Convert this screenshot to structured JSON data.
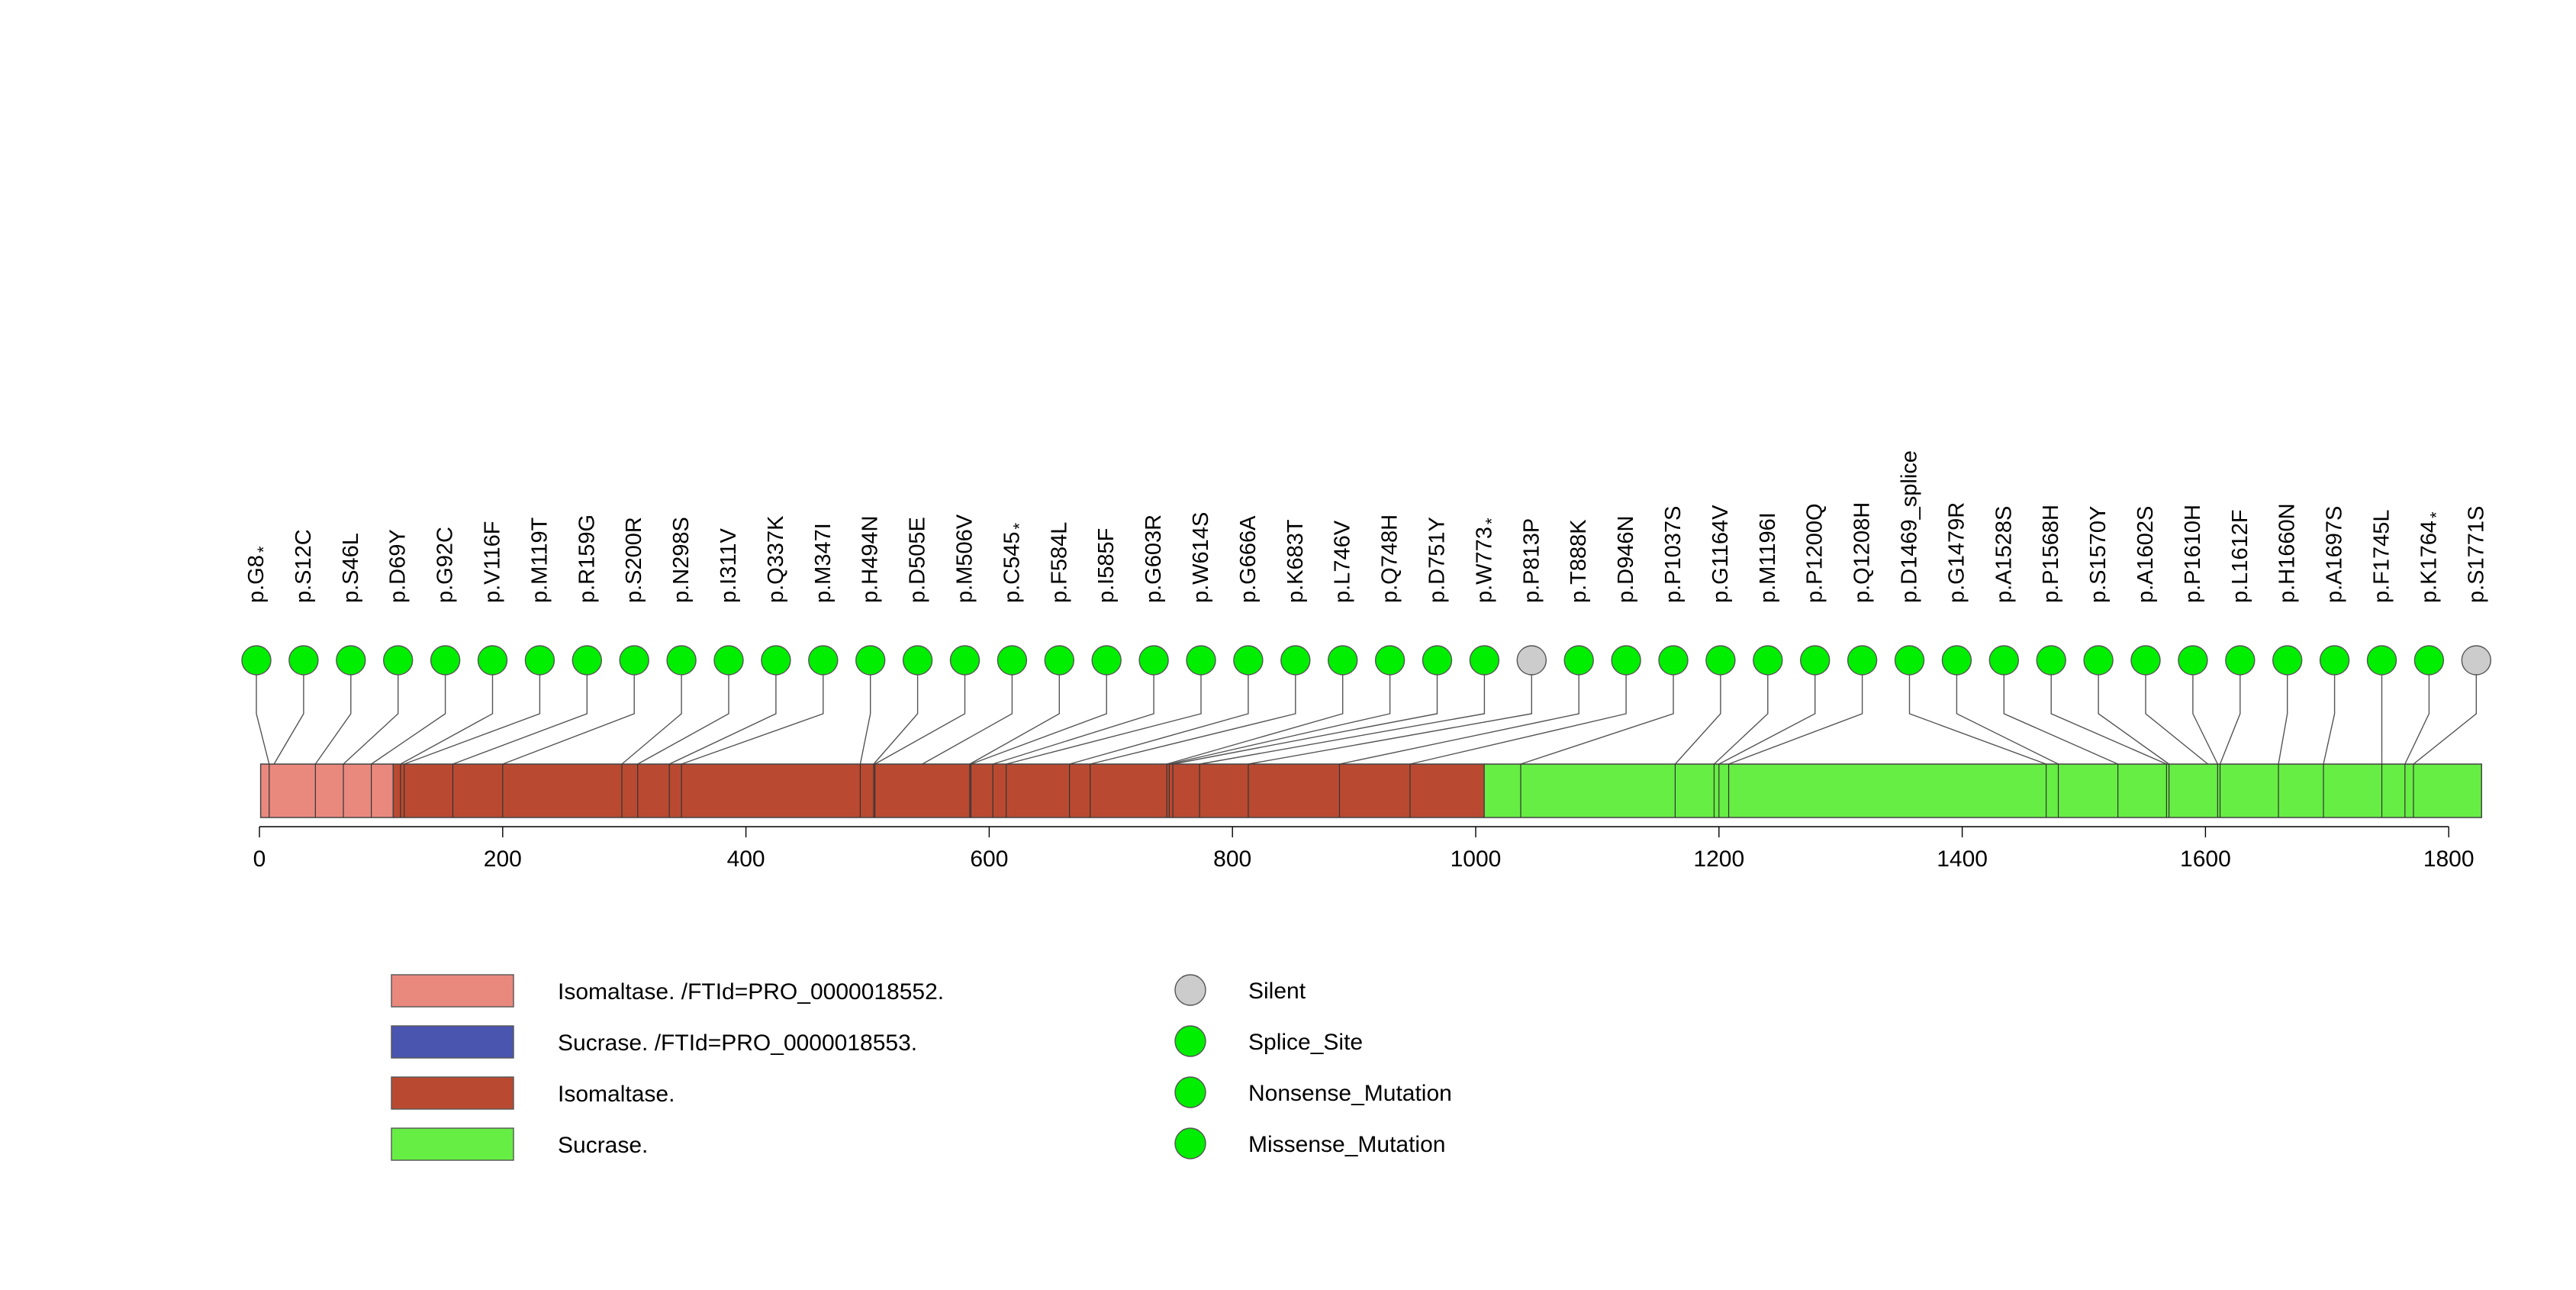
{
  "chart_data": {
    "type": "lollipop",
    "protein_length": 1827,
    "x_axis": {
      "ticks": [
        0,
        200,
        400,
        600,
        800,
        1000,
        1200,
        1400,
        1600,
        1800
      ],
      "range": [
        0,
        1827
      ]
    },
    "domains": [
      {
        "name": "Isomaltase. /FTId=PRO_0000018552.",
        "start": 1,
        "end": 110,
        "color": "#e9897e"
      },
      {
        "name": "Sucrase. /FTId=PRO_0000018553.",
        "start": 0,
        "end": 0,
        "color": "#4a55b0"
      },
      {
        "name": "Isomaltase.",
        "start": 110,
        "end": 1007,
        "color": "#b94a31"
      },
      {
        "name": "Sucrase.",
        "start": 1007,
        "end": 1827,
        "color": "#66ee44"
      }
    ],
    "domain_boundaries": [
      8,
      46,
      69,
      92,
      116,
      119,
      159,
      200,
      298,
      311,
      337,
      347,
      494,
      505,
      506,
      584,
      585,
      603,
      614,
      666,
      683,
      746,
      748,
      751,
      773,
      813,
      888,
      946,
      1037,
      1164,
      1196,
      1200,
      1208,
      1469,
      1479,
      1528,
      1568,
      1570,
      1610,
      1612,
      1660,
      1697,
      1745,
      1764,
      1771
    ],
    "mutations": [
      {
        "label": "p.G8",
        "position": 8,
        "type": "Nonsense_Mutation",
        "star": true
      },
      {
        "label": "p.S12C",
        "position": 12,
        "type": "Missense_Mutation",
        "star": false
      },
      {
        "label": "p.S46L",
        "position": 46,
        "type": "Missense_Mutation",
        "star": false
      },
      {
        "label": "p.D69Y",
        "position": 69,
        "type": "Missense_Mutation",
        "star": false
      },
      {
        "label": "p.G92C",
        "position": 92,
        "type": "Missense_Mutation",
        "star": false
      },
      {
        "label": "p.V116F",
        "position": 116,
        "type": "Missense_Mutation",
        "star": false
      },
      {
        "label": "p.M119T",
        "position": 119,
        "type": "Missense_Mutation",
        "star": false
      },
      {
        "label": "p.R159G",
        "position": 159,
        "type": "Missense_Mutation",
        "star": false
      },
      {
        "label": "p.S200R",
        "position": 200,
        "type": "Missense_Mutation",
        "star": false
      },
      {
        "label": "p.N298S",
        "position": 298,
        "type": "Missense_Mutation",
        "star": false
      },
      {
        "label": "p.I311V",
        "position": 311,
        "type": "Missense_Mutation",
        "star": false
      },
      {
        "label": "p.Q337K",
        "position": 337,
        "type": "Missense_Mutation",
        "star": false
      },
      {
        "label": "p.M347I",
        "position": 347,
        "type": "Missense_Mutation",
        "star": false
      },
      {
        "label": "p.H494N",
        "position": 494,
        "type": "Missense_Mutation",
        "star": false
      },
      {
        "label": "p.D505E",
        "position": 505,
        "type": "Missense_Mutation",
        "star": false
      },
      {
        "label": "p.M506V",
        "position": 506,
        "type": "Missense_Mutation",
        "star": false
      },
      {
        "label": "p.C545",
        "position": 545,
        "type": "Nonsense_Mutation",
        "star": true
      },
      {
        "label": "p.F584L",
        "position": 584,
        "type": "Missense_Mutation",
        "star": false
      },
      {
        "label": "p.I585F",
        "position": 585,
        "type": "Missense_Mutation",
        "star": false
      },
      {
        "label": "p.G603R",
        "position": 603,
        "type": "Missense_Mutation",
        "star": false
      },
      {
        "label": "p.W614S",
        "position": 614,
        "type": "Missense_Mutation",
        "star": false
      },
      {
        "label": "p.G666A",
        "position": 666,
        "type": "Missense_Mutation",
        "star": false
      },
      {
        "label": "p.K683T",
        "position": 683,
        "type": "Missense_Mutation",
        "star": false
      },
      {
        "label": "p.L746V",
        "position": 746,
        "type": "Missense_Mutation",
        "star": false
      },
      {
        "label": "p.Q748H",
        "position": 748,
        "type": "Missense_Mutation",
        "star": false
      },
      {
        "label": "p.D751Y",
        "position": 751,
        "type": "Missense_Mutation",
        "star": false
      },
      {
        "label": "p.W773",
        "position": 773,
        "type": "Nonsense_Mutation",
        "star": true
      },
      {
        "label": "p.P813P",
        "position": 813,
        "type": "Silent",
        "star": false
      },
      {
        "label": "p.T888K",
        "position": 888,
        "type": "Missense_Mutation",
        "star": false
      },
      {
        "label": "p.D946N",
        "position": 946,
        "type": "Missense_Mutation",
        "star": false
      },
      {
        "label": "p.P1037S",
        "position": 1037,
        "type": "Missense_Mutation",
        "star": false
      },
      {
        "label": "p.G1164V",
        "position": 1164,
        "type": "Missense_Mutation",
        "star": false
      },
      {
        "label": "p.M1196I",
        "position": 1196,
        "type": "Missense_Mutation",
        "star": false
      },
      {
        "label": "p.P1200Q",
        "position": 1200,
        "type": "Missense_Mutation",
        "star": false
      },
      {
        "label": "p.Q1208H",
        "position": 1208,
        "type": "Missense_Mutation",
        "star": false
      },
      {
        "label": "p.D1469_splice",
        "position": 1469,
        "type": "Splice_Site",
        "star": false
      },
      {
        "label": "p.G1479R",
        "position": 1479,
        "type": "Missense_Mutation",
        "star": false
      },
      {
        "label": "p.A1528S",
        "position": 1528,
        "type": "Missense_Mutation",
        "star": false
      },
      {
        "label": "p.P1568H",
        "position": 1568,
        "type": "Missense_Mutation",
        "star": false
      },
      {
        "label": "p.S1570Y",
        "position": 1570,
        "type": "Missense_Mutation",
        "star": false
      },
      {
        "label": "p.A1602S",
        "position": 1602,
        "type": "Missense_Mutation",
        "star": false
      },
      {
        "label": "p.P1610H",
        "position": 1610,
        "type": "Missense_Mutation",
        "star": false
      },
      {
        "label": "p.L1612F",
        "position": 1612,
        "type": "Missense_Mutation",
        "star": false
      },
      {
        "label": "p.H1660N",
        "position": 1660,
        "type": "Missense_Mutation",
        "star": false
      },
      {
        "label": "p.A1697S",
        "position": 1697,
        "type": "Missense_Mutation",
        "star": false
      },
      {
        "label": "p.F1745L",
        "position": 1745,
        "type": "Missense_Mutation",
        "star": false
      },
      {
        "label": "p.K1764",
        "position": 1764,
        "type": "Nonsense_Mutation",
        "star": true
      },
      {
        "label": "p.S1771S",
        "position": 1771,
        "type": "Silent",
        "star": false
      }
    ],
    "star_symbol": "*",
    "legend_domains": [
      {
        "label": "Isomaltase. /FTId=PRO_0000018552.",
        "color": "#e9897e"
      },
      {
        "label": "Sucrase. /FTId=PRO_0000018553.",
        "color": "#4a55b0"
      },
      {
        "label": "Isomaltase.",
        "color": "#b94a31"
      },
      {
        "label": "Sucrase.",
        "color": "#66ee44"
      }
    ],
    "legend_mutations": [
      {
        "label": "Silent",
        "color": "#cccccc"
      },
      {
        "label": "Splice_Site",
        "color": "#00ee00"
      },
      {
        "label": "Nonsense_Mutation",
        "color": "#00ee00"
      },
      {
        "label": "Missense_Mutation",
        "color": "#00ee00"
      }
    ],
    "colors": {
      "Silent": "#cccccc",
      "Splice_Site": "#00ee00",
      "Nonsense_Mutation": "#00ee00",
      "Missense_Mutation": "#00ee00",
      "stroke": "#444444"
    }
  }
}
